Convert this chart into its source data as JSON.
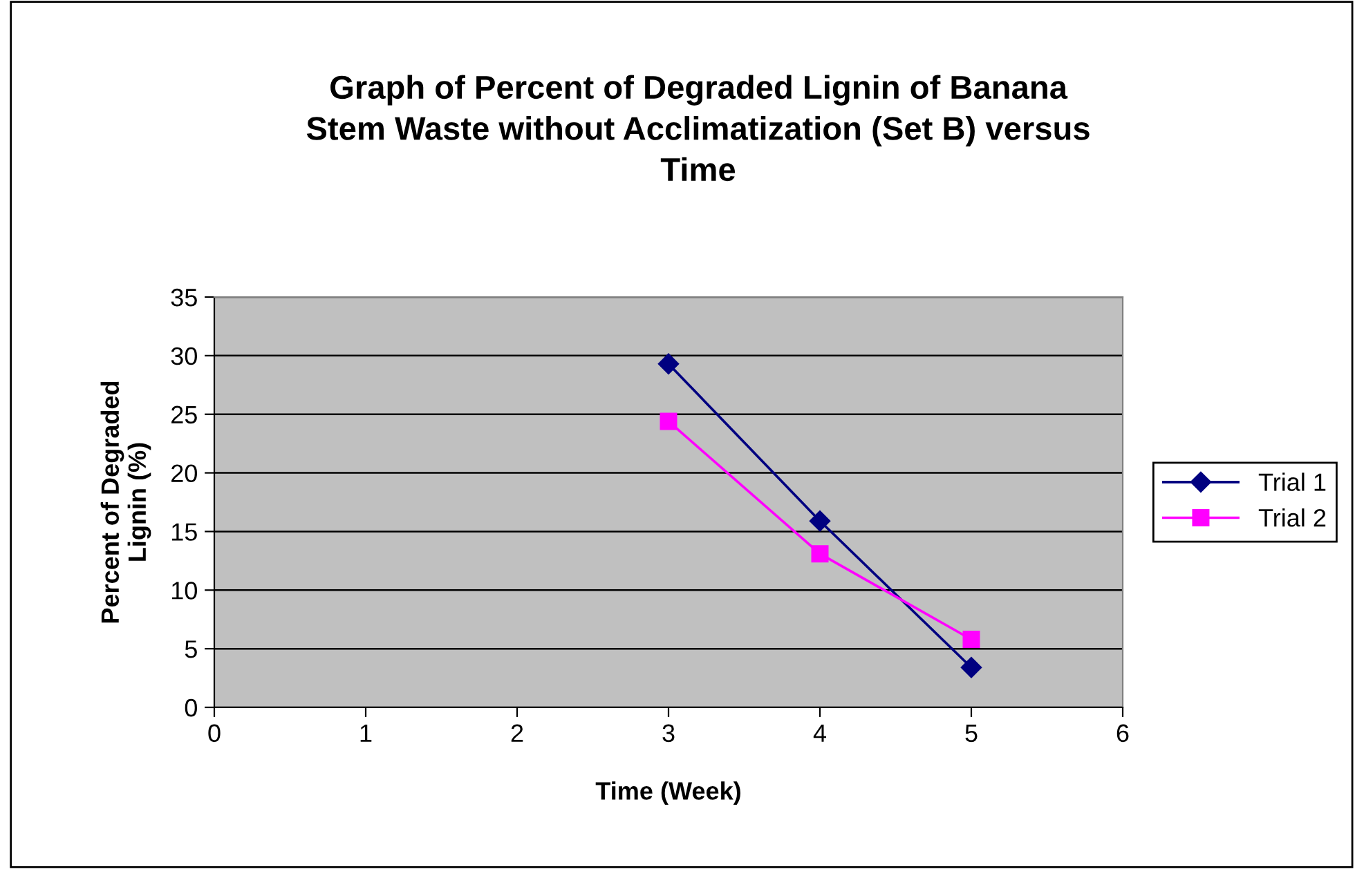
{
  "chart_data": {
    "type": "line",
    "title": "Graph of Percent of Degraded Lignin of Banana\nStem Waste without Acclimatization (Set B) versus\nTime",
    "xlabel": "Time (Week)",
    "ylabel": "Percent of Degraded\nLignin (%)",
    "x": [
      3,
      4,
      5
    ],
    "series": [
      {
        "name": "Trial 1",
        "color": "#000080",
        "marker": "diamond",
        "values": [
          29.3,
          15.9,
          3.4
        ]
      },
      {
        "name": "Trial 2",
        "color": "#ff00ff",
        "marker": "square",
        "values": [
          24.4,
          13.1,
          5.8
        ]
      }
    ],
    "xlim": [
      0,
      6
    ],
    "xticks": [
      0,
      1,
      2,
      3,
      4,
      5,
      6
    ],
    "ylim": [
      0,
      35
    ],
    "yticks": [
      0,
      5,
      10,
      15,
      20,
      25,
      30,
      35
    ],
    "grid": "y",
    "legend": "right",
    "line_style": "solid"
  }
}
